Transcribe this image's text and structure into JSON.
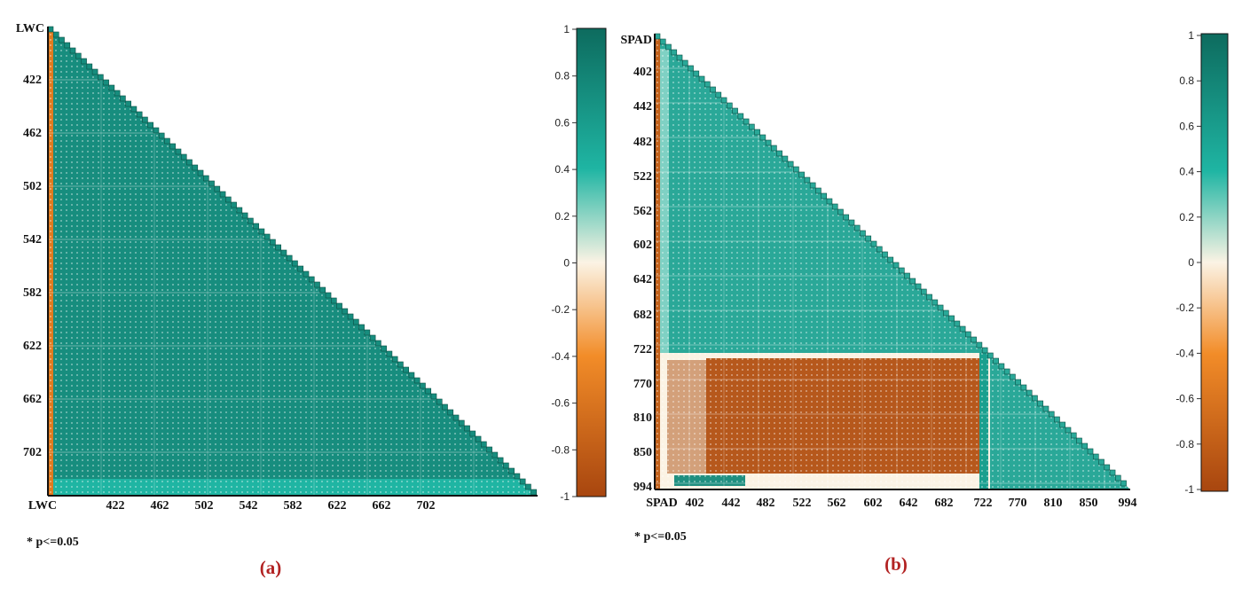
{
  "chart_data": [
    {
      "type": "heatmap",
      "panel_label": "(a)",
      "variable": "LWC",
      "row_tick_labels": [
        "LWC",
        "422",
        "462",
        "502",
        "542",
        "582",
        "622",
        "662",
        "702"
      ],
      "col_tick_labels": [
        "LWC",
        "422",
        "462",
        "502",
        "542",
        "582",
        "622",
        "662",
        "702"
      ],
      "colorbar": {
        "range": [
          -1,
          1
        ],
        "ticks": [
          "1",
          "0.8",
          "0.6",
          "0.4",
          "0.2",
          "0",
          "-0.2",
          "-0.4",
          "-0.6",
          "-0.8",
          "-1"
        ]
      },
      "footnote": "* p<=0.05",
      "description_values": {
        "first_column": -0.5,
        "band_correlation": 0.85,
        "bottom_rows": 0.55
      }
    },
    {
      "type": "heatmap",
      "panel_label": "(b)",
      "variable": "SPAD",
      "row_tick_labels": [
        "SPAD",
        "402",
        "442",
        "482",
        "522",
        "562",
        "602",
        "642",
        "682",
        "722",
        "770",
        "810",
        "850",
        "994"
      ],
      "col_tick_labels": [
        "SPAD",
        "402",
        "442",
        "482",
        "522",
        "562",
        "602",
        "642",
        "682",
        "722",
        "770",
        "810",
        "850",
        "994"
      ],
      "colorbar": {
        "range": [
          -1,
          1
        ],
        "ticks": [
          "1",
          "0.8",
          "0.6",
          "0.4",
          "0.2",
          "0",
          "-0.2",
          "-0.4",
          "-0.6",
          "-0.8",
          "-1"
        ]
      },
      "footnote": "* p<=0.05",
      "description_values": {
        "visible_vs_visible": 0.7,
        "visible_vs_nir": -0.75,
        "nir_vs_nir": 0.7
      }
    }
  ],
  "colors": {
    "high": "#0d6b5e",
    "mid_high": "#1fb5a3",
    "zero": "#fbf3e4",
    "mid_low": "#f28c28",
    "low": "#a8460f",
    "label_red": "#b22222"
  }
}
